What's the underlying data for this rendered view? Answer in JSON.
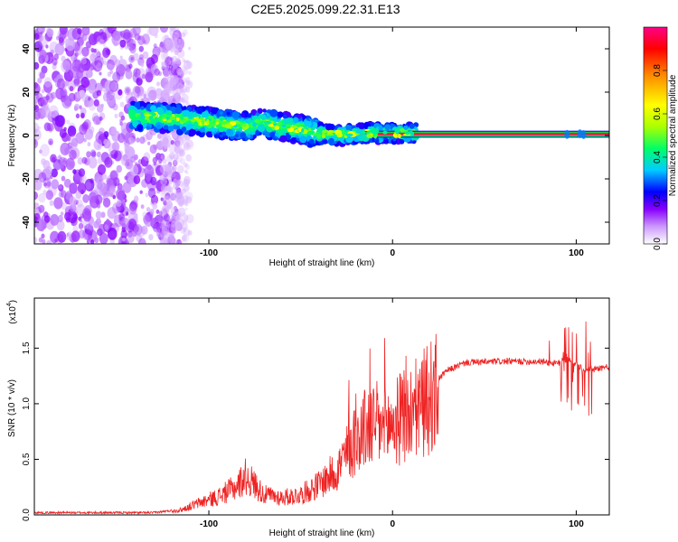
{
  "title": "C2E5.2025.099.22.31.E13",
  "chart_data": [
    {
      "type": "heatmap",
      "xlabel": "Height of straight line (km)",
      "ylabel": "Frequency (Hz)",
      "xlim": [
        -195,
        118
      ],
      "ylim": [
        -50,
        50
      ],
      "xticks": [
        -100,
        0,
        100
      ],
      "yticks": [
        -40,
        -20,
        0,
        20,
        40
      ],
      "colorbar": {
        "label": "Normalized spectral amplitude",
        "range": [
          0,
          1
        ],
        "ticks": [
          "0.0",
          "0.2",
          "0.4",
          "0.6",
          "0.8"
        ],
        "colors": [
          "#ffffff",
          "#cc99ff",
          "#8800ff",
          "#0000ff",
          "#00ccff",
          "#00ff66",
          "#aaff00",
          "#ffff00",
          "#ff8800",
          "#ff0000",
          "#ff0088"
        ]
      },
      "ridge": [
        [
          -140,
          9
        ],
        [
          -120,
          8
        ],
        [
          -100,
          6
        ],
        [
          -80,
          4
        ],
        [
          -70,
          6
        ],
        [
          -60,
          4
        ],
        [
          -50,
          3
        ],
        [
          -40,
          1
        ],
        [
          -30,
          0
        ],
        [
          -20,
          1
        ],
        [
          -10,
          1
        ],
        [
          0,
          1
        ],
        [
          10,
          1
        ],
        [
          50,
          0.8
        ],
        [
          100,
          0.7
        ],
        [
          118,
          0.7
        ]
      ]
    },
    {
      "type": "line",
      "xlabel": "Height of straight line (km)",
      "ylabel": "SNR (10 * v/v)",
      "yscale_label": "(x10",
      "yscale_exp": "4",
      "xlim": [
        -195,
        118
      ],
      "ylim": [
        0,
        1.95
      ],
      "xticks": [
        -100,
        0,
        100
      ],
      "yticks": [
        "0.0",
        "0.5",
        "1.0",
        "1.5"
      ],
      "color": "#ee2222",
      "envelope": [
        [
          -195,
          0.02
        ],
        [
          -130,
          0.02
        ],
        [
          -115,
          0.05
        ],
        [
          -105,
          0.12
        ],
        [
          -95,
          0.18
        ],
        [
          -85,
          0.28
        ],
        [
          -80,
          0.38
        ],
        [
          -75,
          0.3
        ],
        [
          -70,
          0.2
        ],
        [
          -60,
          0.17
        ],
        [
          -50,
          0.2
        ],
        [
          -40,
          0.3
        ],
        [
          -30,
          0.45
        ],
        [
          -25,
          0.6
        ],
        [
          -20,
          0.75
        ],
        [
          -15,
          0.85
        ],
        [
          -10,
          0.9
        ],
        [
          -5,
          0.85
        ],
        [
          0,
          0.9
        ],
        [
          5,
          0.95
        ],
        [
          10,
          1.0
        ],
        [
          20,
          1.15
        ],
        [
          30,
          1.3
        ],
        [
          40,
          1.37
        ],
        [
          60,
          1.38
        ],
        [
          80,
          1.38
        ],
        [
          90,
          1.36
        ],
        [
          95,
          1.4
        ],
        [
          100,
          1.35
        ],
        [
          105,
          1.3
        ],
        [
          110,
          1.32
        ],
        [
          118,
          1.33
        ]
      ]
    }
  ]
}
